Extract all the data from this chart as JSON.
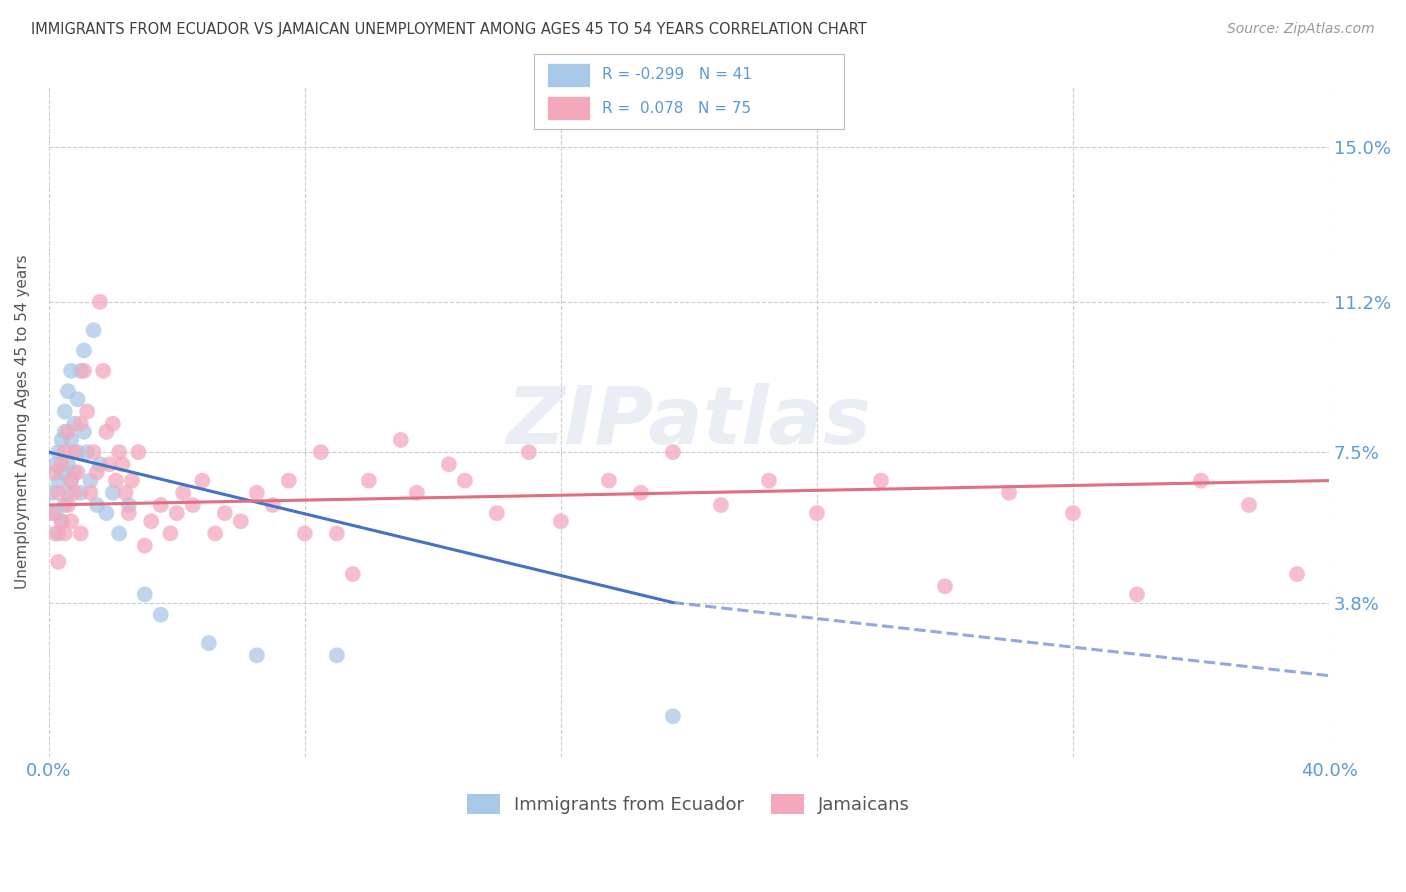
{
  "title": "IMMIGRANTS FROM ECUADOR VS JAMAICAN UNEMPLOYMENT AMONG AGES 45 TO 54 YEARS CORRELATION CHART",
  "source": "Source: ZipAtlas.com",
  "ylabel": "Unemployment Among Ages 45 to 54 years",
  "ytick_vals": [
    0.038,
    0.075,
    0.112,
    0.15
  ],
  "ytick_labels": [
    "3.8%",
    "7.5%",
    "11.2%",
    "15.0%"
  ],
  "xlim": [
    0.0,
    0.4
  ],
  "ylim": [
    0.0,
    0.165
  ],
  "watermark": "ZIPatlas",
  "color_ecuador": "#a8c8e8",
  "color_jamaica": "#f4a8bc",
  "line_color_ecuador": "#4472c4",
  "line_color_jamaica": "#e07080",
  "background_color": "#ffffff",
  "grid_color": "#cccccc",
  "title_color": "#404040",
  "axis_label_color": "#5b9bd5",
  "ecuador_x": [
    0.001,
    0.002,
    0.002,
    0.003,
    0.003,
    0.003,
    0.004,
    0.004,
    0.004,
    0.005,
    0.005,
    0.005,
    0.006,
    0.006,
    0.006,
    0.007,
    0.007,
    0.007,
    0.008,
    0.008,
    0.009,
    0.009,
    0.01,
    0.01,
    0.011,
    0.011,
    0.012,
    0.013,
    0.014,
    0.015,
    0.016,
    0.018,
    0.02,
    0.022,
    0.025,
    0.03,
    0.035,
    0.05,
    0.065,
    0.09,
    0.195
  ],
  "ecuador_y": [
    0.065,
    0.06,
    0.072,
    0.055,
    0.068,
    0.075,
    0.058,
    0.07,
    0.078,
    0.062,
    0.08,
    0.085,
    0.065,
    0.072,
    0.09,
    0.068,
    0.078,
    0.095,
    0.07,
    0.082,
    0.075,
    0.088,
    0.065,
    0.095,
    0.08,
    0.1,
    0.075,
    0.068,
    0.105,
    0.062,
    0.072,
    0.06,
    0.065,
    0.055,
    0.062,
    0.04,
    0.035,
    0.028,
    0.025,
    0.025,
    0.01
  ],
  "jamaica_x": [
    0.001,
    0.002,
    0.002,
    0.003,
    0.003,
    0.004,
    0.004,
    0.005,
    0.005,
    0.006,
    0.006,
    0.007,
    0.007,
    0.008,
    0.008,
    0.009,
    0.01,
    0.01,
    0.011,
    0.012,
    0.013,
    0.014,
    0.015,
    0.016,
    0.017,
    0.018,
    0.019,
    0.02,
    0.021,
    0.022,
    0.023,
    0.024,
    0.025,
    0.026,
    0.028,
    0.03,
    0.032,
    0.035,
    0.038,
    0.04,
    0.042,
    0.045,
    0.048,
    0.052,
    0.055,
    0.06,
    0.065,
    0.07,
    0.075,
    0.08,
    0.085,
    0.09,
    0.095,
    0.1,
    0.11,
    0.115,
    0.125,
    0.13,
    0.14,
    0.15,
    0.16,
    0.175,
    0.185,
    0.195,
    0.21,
    0.225,
    0.24,
    0.26,
    0.28,
    0.3,
    0.32,
    0.34,
    0.36,
    0.375,
    0.39
  ],
  "jamaica_y": [
    0.06,
    0.055,
    0.07,
    0.048,
    0.065,
    0.058,
    0.072,
    0.055,
    0.075,
    0.062,
    0.08,
    0.068,
    0.058,
    0.075,
    0.065,
    0.07,
    0.055,
    0.082,
    0.095,
    0.085,
    0.065,
    0.075,
    0.07,
    0.112,
    0.095,
    0.08,
    0.072,
    0.082,
    0.068,
    0.075,
    0.072,
    0.065,
    0.06,
    0.068,
    0.075,
    0.052,
    0.058,
    0.062,
    0.055,
    0.06,
    0.065,
    0.062,
    0.068,
    0.055,
    0.06,
    0.058,
    0.065,
    0.062,
    0.068,
    0.055,
    0.075,
    0.055,
    0.045,
    0.068,
    0.078,
    0.065,
    0.072,
    0.068,
    0.06,
    0.075,
    0.058,
    0.068,
    0.065,
    0.075,
    0.062,
    0.068,
    0.06,
    0.068,
    0.042,
    0.065,
    0.06,
    0.04,
    0.068,
    0.062,
    0.045
  ],
  "ecuador_line_x0": 0.0,
  "ecuador_line_x1": 0.195,
  "ecuador_line_x1_dashed": 0.4,
  "ecuador_line_y_start": 0.075,
  "ecuador_line_y_end": 0.038,
  "ecuador_line_y_dashed_end": 0.02,
  "jamaica_line_y_start": 0.062,
  "jamaica_line_y_end": 0.068
}
